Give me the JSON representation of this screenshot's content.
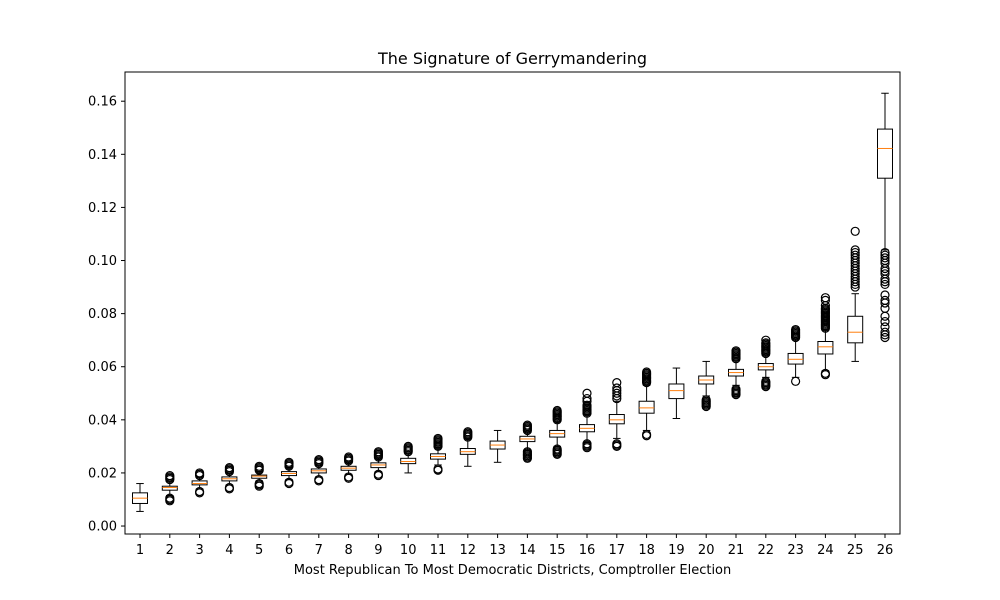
{
  "chart_data": {
    "type": "boxplot",
    "title": "The Signature of Gerrymandering",
    "xlabel": "Most Republican To Most Democratic Districts, Comptroller Election",
    "ylabel": "",
    "ylim": [
      -0.003,
      0.171
    ],
    "y_ticks": [
      0.0,
      0.02,
      0.04,
      0.06,
      0.08,
      0.1,
      0.12,
      0.14,
      0.16
    ],
    "y_tick_labels": [
      "0.00",
      "0.02",
      "0.04",
      "0.06",
      "0.08",
      "0.10",
      "0.12",
      "0.14",
      "0.16"
    ],
    "categories": [
      "1",
      "2",
      "3",
      "4",
      "5",
      "6",
      "7",
      "8",
      "9",
      "10",
      "11",
      "12",
      "13",
      "14",
      "15",
      "16",
      "17",
      "18",
      "19",
      "20",
      "21",
      "22",
      "23",
      "24",
      "25",
      "26"
    ],
    "grid": false,
    "colors": {
      "box": "#000000",
      "median": "#ff7f0e",
      "flier": "#000000"
    },
    "boxes": [
      {
        "q1": 0.0085,
        "median": 0.0105,
        "q3": 0.0125,
        "whisker_low": 0.0055,
        "whisker_high": 0.016,
        "fliers": []
      },
      {
        "q1": 0.0135,
        "median": 0.0145,
        "q3": 0.015,
        "whisker_low": 0.0115,
        "whisker_high": 0.017,
        "fliers": [
          0.0095,
          0.01,
          0.0105,
          0.0175,
          0.018,
          0.0185,
          0.019
        ]
      },
      {
        "q1": 0.0155,
        "median": 0.016,
        "q3": 0.017,
        "whisker_low": 0.014,
        "whisker_high": 0.0185,
        "fliers": [
          0.0125,
          0.013,
          0.019,
          0.0195,
          0.02
        ]
      },
      {
        "q1": 0.017,
        "median": 0.0178,
        "q3": 0.0185,
        "whisker_low": 0.0155,
        "whisker_high": 0.02,
        "fliers": [
          0.014,
          0.0145,
          0.0205,
          0.021,
          0.0215,
          0.022
        ]
      },
      {
        "q1": 0.018,
        "median": 0.0188,
        "q3": 0.0192,
        "whisker_low": 0.017,
        "whisker_high": 0.0205,
        "fliers": [
          0.015,
          0.0155,
          0.016,
          0.021,
          0.0215,
          0.022,
          0.0225
        ]
      },
      {
        "q1": 0.019,
        "median": 0.0198,
        "q3": 0.0205,
        "whisker_low": 0.0175,
        "whisker_high": 0.022,
        "fliers": [
          0.016,
          0.0165,
          0.0225,
          0.023,
          0.0235,
          0.024
        ]
      },
      {
        "q1": 0.02,
        "median": 0.0208,
        "q3": 0.0215,
        "whisker_low": 0.0185,
        "whisker_high": 0.023,
        "fliers": [
          0.017,
          0.0175,
          0.0235,
          0.024,
          0.0245,
          0.025
        ]
      },
      {
        "q1": 0.021,
        "median": 0.0218,
        "q3": 0.0225,
        "whisker_low": 0.0195,
        "whisker_high": 0.024,
        "fliers": [
          0.018,
          0.0185,
          0.0245,
          0.025,
          0.0255,
          0.026
        ]
      },
      {
        "q1": 0.022,
        "median": 0.023,
        "q3": 0.0238,
        "whisker_low": 0.0205,
        "whisker_high": 0.0255,
        "fliers": [
          0.019,
          0.0195,
          0.026,
          0.0265,
          0.027,
          0.0275,
          0.028
        ]
      },
      {
        "q1": 0.0235,
        "median": 0.0243,
        "q3": 0.0255,
        "whisker_low": 0.02,
        "whisker_high": 0.0275,
        "fliers": [
          0.028,
          0.0285,
          0.029,
          0.0295,
          0.03
        ]
      },
      {
        "q1": 0.0252,
        "median": 0.0262,
        "q3": 0.0272,
        "whisker_low": 0.023,
        "whisker_high": 0.0295,
        "fliers": [
          0.021,
          0.0215,
          0.03,
          0.0305,
          0.031,
          0.0315,
          0.032,
          0.0325,
          0.033
        ]
      },
      {
        "q1": 0.027,
        "median": 0.028,
        "q3": 0.0292,
        "whisker_low": 0.0225,
        "whisker_high": 0.033,
        "fliers": [
          0.0335,
          0.034,
          0.0345,
          0.035,
          0.0355
        ]
      },
      {
        "q1": 0.029,
        "median": 0.0305,
        "q3": 0.032,
        "whisker_low": 0.024,
        "whisker_high": 0.036,
        "fliers": []
      },
      {
        "q1": 0.0318,
        "median": 0.0328,
        "q3": 0.0338,
        "whisker_low": 0.0285,
        "whisker_high": 0.0355,
        "fliers": [
          0.0255,
          0.026,
          0.0265,
          0.027,
          0.0275,
          0.028,
          0.036,
          0.0365,
          0.037,
          0.0375,
          0.038
        ]
      },
      {
        "q1": 0.0335,
        "median": 0.0348,
        "q3": 0.036,
        "whisker_low": 0.03,
        "whisker_high": 0.0395,
        "fliers": [
          0.027,
          0.0275,
          0.028,
          0.0285,
          0.029,
          0.04,
          0.0405,
          0.041,
          0.0415,
          0.042,
          0.0425,
          0.043,
          0.0435
        ]
      },
      {
        "q1": 0.0355,
        "median": 0.0368,
        "q3": 0.0382,
        "whisker_low": 0.0315,
        "whisker_high": 0.042,
        "fliers": [
          0.0295,
          0.03,
          0.0305,
          0.031,
          0.0425,
          0.043,
          0.0435,
          0.044,
          0.0445,
          0.045,
          0.0455,
          0.047,
          0.048,
          0.05
        ]
      },
      {
        "q1": 0.0385,
        "median": 0.04,
        "q3": 0.042,
        "whisker_low": 0.033,
        "whisker_high": 0.047,
        "fliers": [
          0.03,
          0.0305,
          0.031,
          0.048,
          0.049,
          0.05,
          0.051,
          0.052,
          0.054
        ]
      },
      {
        "q1": 0.0425,
        "median": 0.0445,
        "q3": 0.047,
        "whisker_low": 0.036,
        "whisker_high": 0.053,
        "fliers": [
          0.034,
          0.0345,
          0.054,
          0.0545,
          0.055,
          0.0555,
          0.056,
          0.0565,
          0.057,
          0.0575,
          0.058
        ]
      },
      {
        "q1": 0.048,
        "median": 0.051,
        "q3": 0.0535,
        "whisker_low": 0.0405,
        "whisker_high": 0.0595,
        "fliers": []
      },
      {
        "q1": 0.0535,
        "median": 0.055,
        "q3": 0.0565,
        "whisker_low": 0.049,
        "whisker_high": 0.062,
        "fliers": [
          0.045,
          0.0455,
          0.046,
          0.0465,
          0.047,
          0.0475
        ]
      },
      {
        "q1": 0.0565,
        "median": 0.0578,
        "q3": 0.059,
        "whisker_low": 0.053,
        "whisker_high": 0.0625,
        "fliers": [
          0.0495,
          0.05,
          0.0505,
          0.051,
          0.0515,
          0.063,
          0.0635,
          0.064,
          0.0645,
          0.065,
          0.0655,
          0.066
        ]
      },
      {
        "q1": 0.0588,
        "median": 0.06,
        "q3": 0.0612,
        "whisker_low": 0.056,
        "whisker_high": 0.0645,
        "fliers": [
          0.0525,
          0.053,
          0.0535,
          0.054,
          0.0545,
          0.065,
          0.0655,
          0.066,
          0.0665,
          0.067,
          0.0675,
          0.068,
          0.0685,
          0.069,
          0.07
        ]
      },
      {
        "q1": 0.061,
        "median": 0.0628,
        "q3": 0.065,
        "whisker_low": 0.056,
        "whisker_high": 0.0705,
        "fliers": [
          0.0545,
          0.071,
          0.0715,
          0.072,
          0.0725,
          0.073,
          0.0735,
          0.074
        ]
      },
      {
        "q1": 0.0648,
        "median": 0.0675,
        "q3": 0.0695,
        "whisker_low": 0.0585,
        "whisker_high": 0.074,
        "fliers": [
          0.057,
          0.0575,
          0.0745,
          0.075,
          0.0755,
          0.076,
          0.0765,
          0.077,
          0.0775,
          0.078,
          0.0785,
          0.079,
          0.0795,
          0.08,
          0.0805,
          0.081,
          0.0815,
          0.082,
          0.083,
          0.085,
          0.086
        ]
      },
      {
        "q1": 0.069,
        "median": 0.073,
        "q3": 0.079,
        "whisker_low": 0.062,
        "whisker_high": 0.0875,
        "fliers": [
          0.09,
          0.091,
          0.092,
          0.093,
          0.094,
          0.095,
          0.096,
          0.097,
          0.098,
          0.099,
          0.1,
          0.101,
          0.102,
          0.103,
          0.104,
          0.111
        ]
      },
      {
        "q1": 0.131,
        "median": 0.1422,
        "q3": 0.1495,
        "whisker_low": 0.104,
        "whisker_high": 0.163,
        "fliers": [
          0.071,
          0.072,
          0.073,
          0.075,
          0.077,
          0.079,
          0.082,
          0.084,
          0.085,
          0.087,
          0.091,
          0.092,
          0.093,
          0.095,
          0.096,
          0.097,
          0.099,
          0.1,
          0.101,
          0.102,
          0.103
        ]
      }
    ]
  }
}
